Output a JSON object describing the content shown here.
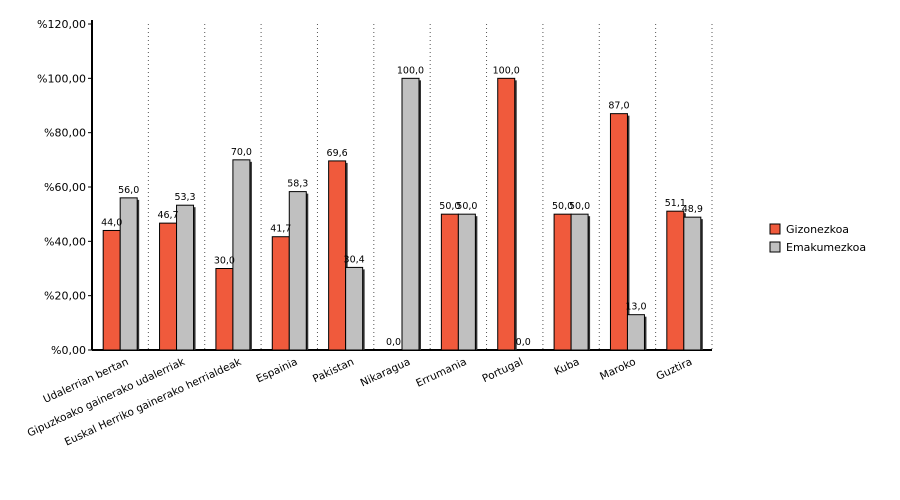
{
  "chart_data": {
    "type": "bar",
    "categories": [
      "Udalerrian bertan",
      "Gipuzkoako gainerako udalerriak",
      "Euskal Herriko gainerako herrialdeak",
      "Espainia",
      "Pakistan",
      "Nikaragua",
      "Errumania",
      "Portugal",
      "Kuba",
      "Maroko",
      "Guztira"
    ],
    "series": [
      {
        "name": "Gizonezkoa",
        "color": "#f05a3c",
        "values": [
          44.0,
          46.7,
          30.0,
          41.7,
          69.6,
          0.0,
          50.0,
          100.0,
          50.0,
          87.0,
          51.1
        ],
        "labels": [
          "44,0",
          "46,7",
          "30,0",
          "41,7",
          "69,6",
          "0,0",
          "50,0",
          "100,0",
          "50,0",
          "87,0",
          "51,1"
        ]
      },
      {
        "name": "Emakumezkoa",
        "color": "#c0c0c0",
        "values": [
          56.0,
          53.3,
          70.0,
          58.3,
          30.4,
          100.0,
          50.0,
          0.0,
          50.0,
          13.0,
          48.9
        ],
        "labels": [
          "56,0",
          "53,3",
          "70,0",
          "58,3",
          "30,4",
          "100,0",
          "50,0",
          "0,0",
          "50,0",
          "13,0",
          "48,9"
        ]
      }
    ],
    "ylim": [
      0,
      120
    ],
    "yticks": [
      0,
      20,
      40,
      60,
      80,
      100,
      120
    ],
    "ytick_labels": [
      "%0,00",
      "%20,00",
      "%40,00",
      "%60,00",
      "%80,00",
      "%100,00",
      "%120,00"
    ],
    "grid": "vertical dotted",
    "legend_position": "right"
  }
}
